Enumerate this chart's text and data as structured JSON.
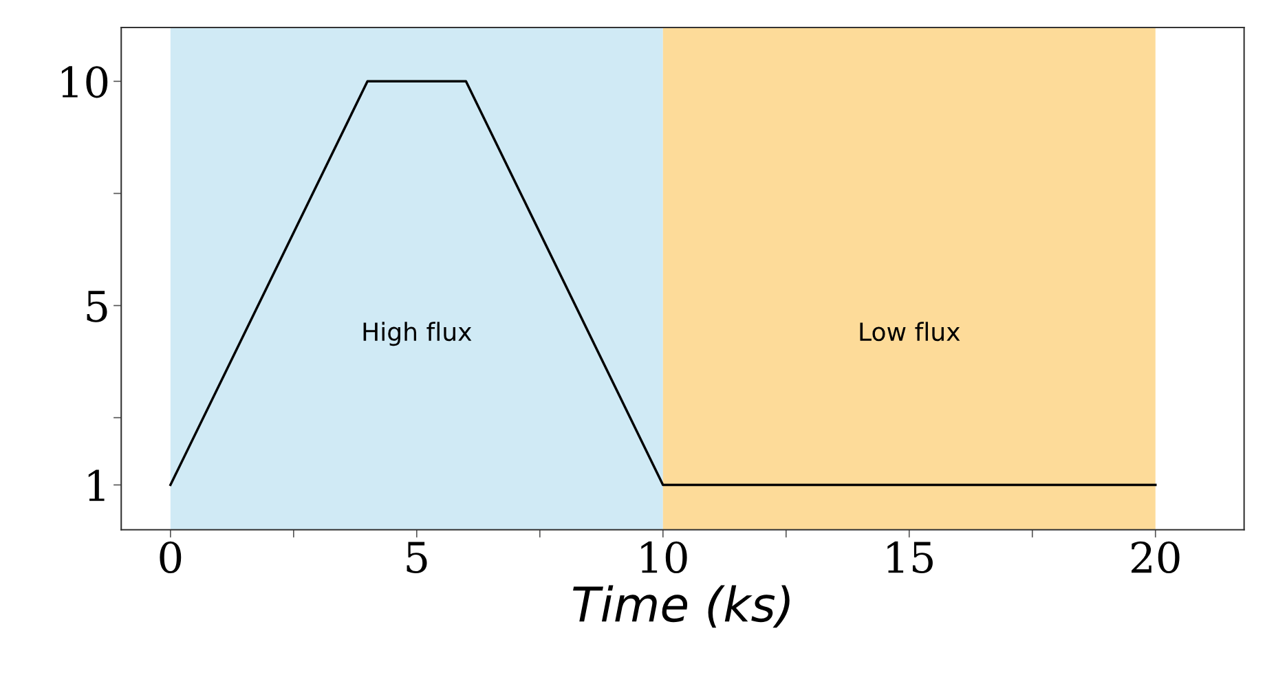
{
  "chart_data": {
    "type": "line",
    "xlabel": "Time (ks)",
    "x": [
      0,
      4,
      6,
      10,
      20
    ],
    "series": [
      {
        "color": "#000000",
        "values": [
          1,
          10,
          10,
          1,
          1
        ]
      }
    ],
    "xlim": [
      -1,
      21.8
    ],
    "xticks": [
      0,
      {
        "value": 2.5,
        "label": null
      },
      5,
      {
        "value": 7.5,
        "label": null
      },
      10,
      {
        "value": 12.5,
        "label": null
      },
      15,
      {
        "value": 17.5,
        "label": null
      },
      20
    ],
    "ylim": [
      0,
      11.2
    ],
    "yticks": [
      1,
      {
        "value": 2.5,
        "label": null
      },
      5,
      {
        "value": 7.5,
        "label": null
      },
      10
    ],
    "bands": [
      {
        "axis": "x",
        "from": 0,
        "to": 10,
        "label": "High flux",
        "color": "#d0eaf5"
      },
      {
        "axis": "x",
        "from": 10,
        "to": 20,
        "label": "Low flux",
        "color": "#fddb99"
      }
    ],
    "grid": false,
    "legend": false,
    "marker": "none",
    "line_style": "solid"
  }
}
